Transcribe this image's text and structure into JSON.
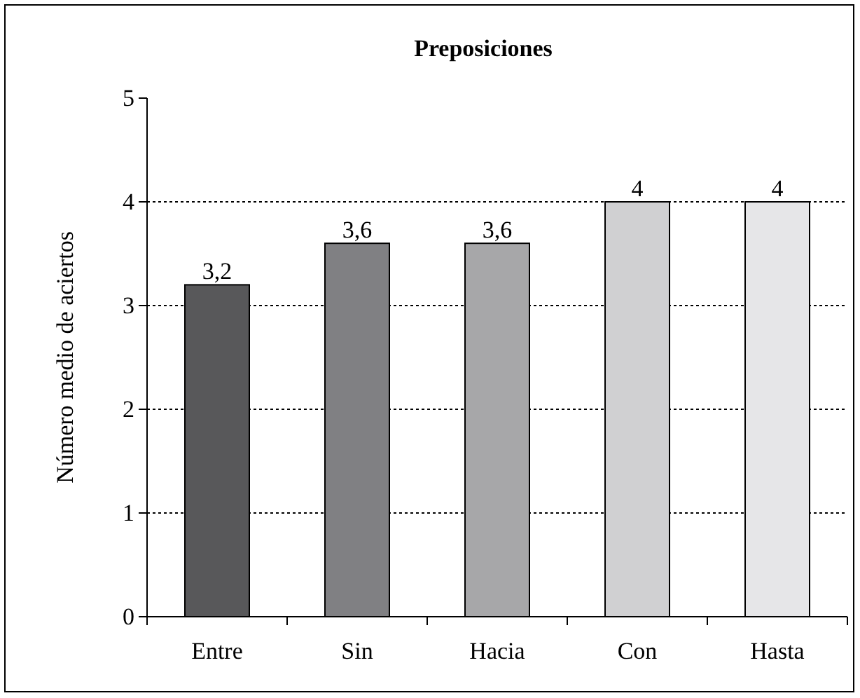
{
  "chart_data": {
    "type": "bar",
    "title": "Preposiciones",
    "ylabel": "Número medio de aciertos",
    "categories": [
      "Entre",
      "Sin",
      "Hacia",
      "Con",
      "Hasta"
    ],
    "values": [
      3.2,
      3.6,
      3.6,
      4,
      4
    ],
    "colors": [
      "#58585a",
      "#808083",
      "#a7a7a9",
      "#d0d0d2",
      "#e6e6e8"
    ],
    "value_labels": [
      "3,2",
      "3,6",
      "3,6",
      "4",
      "4"
    ],
    "ylim": [
      0,
      5
    ],
    "yticks": [
      0,
      1,
      2,
      3,
      4,
      5
    ],
    "grid": "y"
  }
}
